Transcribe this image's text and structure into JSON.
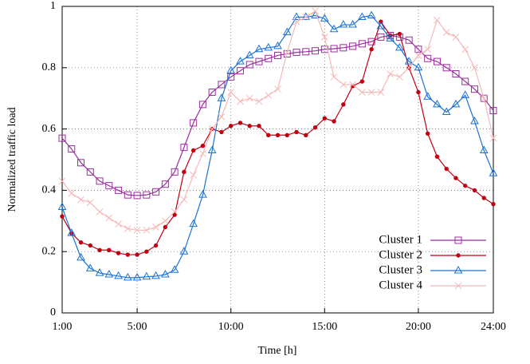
{
  "chart_data": {
    "type": "line",
    "xlabel": "Time [h]",
    "ylabel": "Normalized traffic load",
    "x": [
      1,
      1.5,
      2,
      2.5,
      3,
      3.5,
      4,
      4.5,
      5,
      5.5,
      6,
      6.5,
      7,
      7.5,
      8,
      8.5,
      9,
      9.5,
      10,
      10.5,
      11,
      11.5,
      12,
      12.5,
      13,
      13.5,
      14,
      14.5,
      15,
      15.5,
      16,
      16.5,
      17,
      17.5,
      18,
      18.5,
      19,
      19.5,
      20,
      20.5,
      21,
      21.5,
      22,
      22.5,
      23,
      23.5,
      24
    ],
    "series": [
      {
        "name": "Cluster 1",
        "color": "#9b2d9f",
        "marker": "square",
        "values": [
          0.57,
          0.535,
          0.49,
          0.46,
          0.43,
          0.415,
          0.4,
          0.385,
          0.383,
          0.385,
          0.395,
          0.42,
          0.46,
          0.54,
          0.62,
          0.68,
          0.72,
          0.745,
          0.77,
          0.79,
          0.81,
          0.82,
          0.83,
          0.84,
          0.845,
          0.85,
          0.852,
          0.855,
          0.86,
          0.862,
          0.865,
          0.87,
          0.878,
          0.885,
          0.9,
          0.905,
          0.9,
          0.89,
          0.86,
          0.83,
          0.82,
          0.8,
          0.78,
          0.755,
          0.73,
          0.7,
          0.66
        ]
      },
      {
        "name": "Cluster 2",
        "color": "#c00010",
        "marker": "circle",
        "values": [
          0.315,
          0.26,
          0.23,
          0.22,
          0.205,
          0.205,
          0.195,
          0.19,
          0.19,
          0.2,
          0.22,
          0.28,
          0.32,
          0.46,
          0.53,
          0.545,
          0.6,
          0.59,
          0.61,
          0.62,
          0.61,
          0.61,
          0.58,
          0.58,
          0.58,
          0.59,
          0.58,
          0.605,
          0.635,
          0.625,
          0.68,
          0.74,
          0.755,
          0.86,
          0.95,
          0.905,
          0.91,
          0.8,
          0.72,
          0.585,
          0.51,
          0.47,
          0.44,
          0.415,
          0.4,
          0.375,
          0.355
        ]
      },
      {
        "name": "Cluster 3",
        "color": "#1a72d6",
        "marker": "triangle",
        "values": [
          0.345,
          0.26,
          0.18,
          0.145,
          0.13,
          0.125,
          0.12,
          0.115,
          0.115,
          0.118,
          0.12,
          0.125,
          0.14,
          0.2,
          0.29,
          0.385,
          0.53,
          0.7,
          0.79,
          0.82,
          0.84,
          0.86,
          0.865,
          0.87,
          0.915,
          0.965,
          0.965,
          0.97,
          0.96,
          0.925,
          0.94,
          0.94,
          0.965,
          0.97,
          0.935,
          0.895,
          0.865,
          0.82,
          0.8,
          0.705,
          0.68,
          0.655,
          0.68,
          0.71,
          0.625,
          0.53,
          0.455
        ]
      },
      {
        "name": "Cluster 4",
        "color": "#f5b8b8",
        "marker": "x",
        "values": [
          0.43,
          0.39,
          0.37,
          0.36,
          0.33,
          0.31,
          0.29,
          0.275,
          0.27,
          0.27,
          0.28,
          0.3,
          0.33,
          0.37,
          0.45,
          0.52,
          0.6,
          0.64,
          0.72,
          0.69,
          0.7,
          0.69,
          0.71,
          0.73,
          0.85,
          0.95,
          0.965,
          0.985,
          0.9,
          0.77,
          0.745,
          0.745,
          0.72,
          0.72,
          0.72,
          0.78,
          0.77,
          0.8,
          0.84,
          0.86,
          0.955,
          0.915,
          0.9,
          0.86,
          0.8,
          0.7,
          0.57
        ]
      }
    ],
    "xlim": [
      1,
      24
    ],
    "xticks": [
      {
        "value": 1,
        "label": "1:00"
      },
      {
        "value": 5,
        "label": "5:00"
      },
      {
        "value": 10,
        "label": "10:00"
      },
      {
        "value": 15,
        "label": "15:00"
      },
      {
        "value": 20,
        "label": "20:00"
      },
      {
        "value": 24,
        "label": "24:00"
      }
    ],
    "ylim": [
      0,
      1
    ],
    "yticks": [
      0,
      0.2,
      0.4,
      0.6,
      0.8,
      1
    ],
    "grid": true,
    "legend": "lower right"
  }
}
